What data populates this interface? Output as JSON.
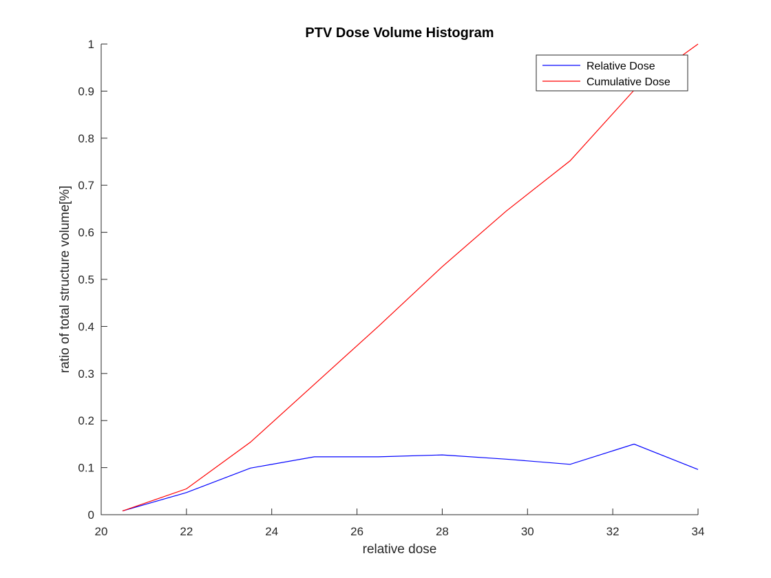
{
  "chart_data": {
    "type": "line",
    "title": "PTV Dose Volume Histogram",
    "xlabel": "relative dose",
    "ylabel": "ratio of total structure volume[%]",
    "xlim": [
      20,
      34
    ],
    "ylim": [
      0,
      1
    ],
    "xticks": [
      20,
      22,
      24,
      26,
      28,
      30,
      32,
      34
    ],
    "yticks": [
      0,
      0.1,
      0.2,
      0.3,
      0.4,
      0.5,
      0.6,
      0.7,
      0.8,
      0.9,
      1
    ],
    "grid": false,
    "legend_position": "top-right",
    "x": [
      20.5,
      22,
      23.5,
      25,
      26.5,
      28,
      29.5,
      31,
      32.5,
      34
    ],
    "series": [
      {
        "name": "Relative Dose",
        "color": "#0000ff",
        "values": [
          0.008,
          0.047,
          0.099,
          0.123,
          0.123,
          0.127,
          0.118,
          0.107,
          0.15,
          0.096
        ]
      },
      {
        "name": "Cumulative Dose",
        "color": "#ff0000",
        "values": [
          0.008,
          0.055,
          0.154,
          0.277,
          0.4,
          0.527,
          0.645,
          0.752,
          0.902,
          1.0
        ]
      }
    ]
  }
}
